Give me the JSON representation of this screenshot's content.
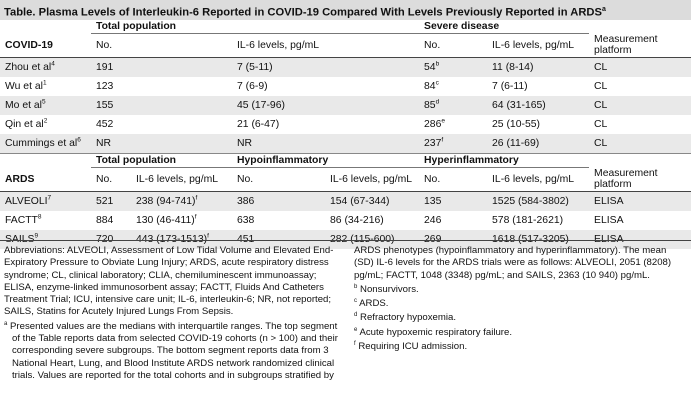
{
  "title": {
    "text": "Table. Plasma Levels of Interleukin-6 Reported in COVID-19 Compared With Levels Previously Reported in ARDS",
    "sup": "a"
  },
  "covid": {
    "header": {
      "group1": "Total population",
      "group2": "Severe disease",
      "label": "COVID-19",
      "no": "No.",
      "il6": "IL-6 levels, pg/mL",
      "platform": "Measurement platform"
    },
    "rows": [
      {
        "study": "Zhou et al",
        "ref": "4",
        "total_no": "191",
        "total_il6": "7 (5-11)",
        "severe_no": "54",
        "severe_sup": "b",
        "severe_il6": "11 (8-14)",
        "platform": "CL"
      },
      {
        "study": "Wu et al",
        "ref": "1",
        "total_no": "123",
        "total_il6": "7 (6-9)",
        "severe_no": "84",
        "severe_sup": "c",
        "severe_il6": "7 (6-11)",
        "platform": "CL"
      },
      {
        "study": "Mo et al",
        "ref": "5",
        "total_no": "155",
        "total_il6": "45 (17-96)",
        "severe_no": "85",
        "severe_sup": "d",
        "severe_il6": "64 (31-165)",
        "platform": "CL"
      },
      {
        "study": "Qin et al",
        "ref": "2",
        "total_no": "452",
        "total_il6": "21 (6-47)",
        "severe_no": "286",
        "severe_sup": "e",
        "severe_il6": "25 (10-55)",
        "platform": "CL"
      },
      {
        "study": "Cummings et al",
        "ref": "6",
        "total_no": "NR",
        "total_il6": "NR",
        "severe_no": "237",
        "severe_sup": "f",
        "severe_il6": "26 (11-69)",
        "platform": "CL"
      }
    ]
  },
  "ards": {
    "header": {
      "group1": "Total population",
      "group2": "Hypoinflammatory",
      "group3": "Hyperinflammatory",
      "label": "ARDS",
      "no": "No.",
      "il6": "IL-6 levels, pg/mL",
      "platform": "Measurement platform"
    },
    "rows": [
      {
        "study": "ALVEOLI",
        "ref": "7",
        "total_no": "521",
        "total_il6": "238 (94-741)",
        "total_sup": "f",
        "hypo_no": "386",
        "hypo_il6": "154 (67-344)",
        "hyper_no": "135",
        "hyper_il6": "1525 (584-3802)",
        "platform": "ELISA"
      },
      {
        "study": "FACTT",
        "ref": "8",
        "total_no": "884",
        "total_il6": "130 (46-411)",
        "total_sup": "f",
        "hypo_no": "638",
        "hypo_il6": "86 (34-216)",
        "hyper_no": "246",
        "hyper_il6": "578 (181-2621)",
        "platform": "ELISA"
      },
      {
        "study": "SAILS",
        "ref": "9",
        "total_no": "720",
        "total_il6": "443 (173-1513)",
        "total_sup": "f",
        "hypo_no": "451",
        "hypo_il6": "282 (115-600)",
        "hyper_no": "269",
        "hyper_il6": "1618 (517-3205)",
        "platform": "ELISA"
      }
    ]
  },
  "notes": {
    "abbreviations": "Abbreviations: ALVEOLI, Assessment of Low Tidal Volume and Elevated End-Expiratory Pressure to Obviate Lung Injury; ARDS, acute respiratory distress syndrome; CL, clinical laboratory; CLIA, chemiluminescent immunoassay; ELISA, enzyme-linked immunosorbent assay; FACTT, Fluids And Catheters Treatment Trial; ICU, intensive care unit; IL-6, interleukin-6; NR, not reported; SAILS, Statins for Acutely Injured Lungs From Sepsis.",
    "a": {
      "mark": "a",
      "text": "Presented values are the medians with interquartile ranges. The top segment of the Table reports data from selected COVID-19 cohorts (n > 100) and their corresponding severe subgroups. The bottom segment reports data from 3 National Heart, Lung, and Blood Institute ARDS network randomized clinical trials. Values are reported for the total cohorts and in subgroups stratified by"
    },
    "a_cont": "ARDS phenotypes (hypoinflammatory and hyperinflammatory). The mean (SD) IL-6 levels for the ARDS trials were as follows: ALVEOLI, 2051 (8208) pg/mL; FACTT, 1048 (3348) pg/mL; and SAILS, 2363 (10 940) pg/mL.",
    "b": {
      "mark": "b",
      "text": "Nonsurvivors."
    },
    "c": {
      "mark": "c",
      "text": "ARDS."
    },
    "d": {
      "mark": "d",
      "text": "Refractory hypoxemia."
    },
    "e": {
      "mark": "e",
      "text": "Acute hypoxemic respiratory failure."
    },
    "f": {
      "mark": "f",
      "text": "Requiring ICU admission."
    }
  }
}
